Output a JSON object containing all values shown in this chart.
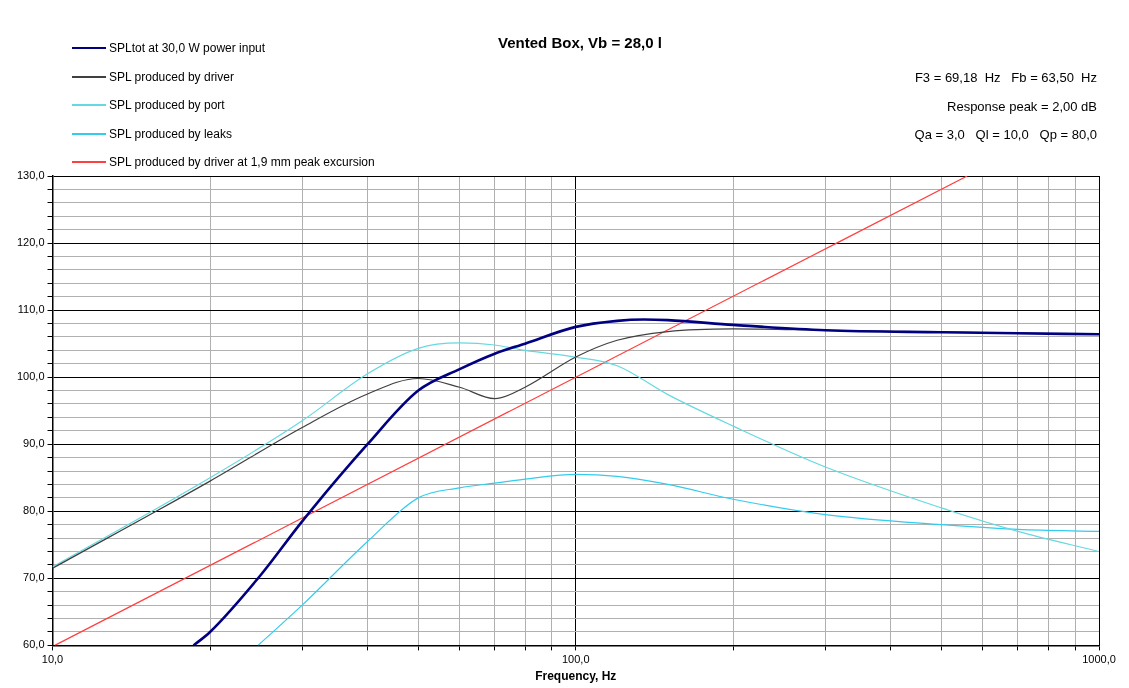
{
  "chart_data": {
    "type": "line",
    "title": "Vented Box, Vb = 28,0 l",
    "xlabel": "Frequency, Hz",
    "log": "x",
    "legend": "top left",
    "grid": true,
    "marker": "none",
    "line_style": "solid",
    "annotations": [
      "F3 = 69,18  Hz   Fb = 63,50  Hz",
      "Response peak = 2,00 dB",
      "Qa = 3,0   Ql = 10,0   Qp = 80,0"
    ],
    "xlim": [
      10,
      1000
    ],
    "xticks": [
      {
        "value": 10,
        "label": "10,0"
      },
      {
        "value": 20,
        "label": null
      },
      {
        "value": 30,
        "label": null
      },
      {
        "value": 40,
        "label": null
      },
      {
        "value": 50,
        "label": null
      },
      {
        "value": 60,
        "label": null
      },
      {
        "value": 70,
        "label": null
      },
      {
        "value": 80,
        "label": null
      },
      {
        "value": 90,
        "label": null
      },
      {
        "value": 100,
        "label": "100,0"
      },
      {
        "value": 200,
        "label": null
      },
      {
        "value": 300,
        "label": null
      },
      {
        "value": 400,
        "label": null
      },
      {
        "value": 500,
        "label": null
      },
      {
        "value": 600,
        "label": null
      },
      {
        "value": 700,
        "label": null
      },
      {
        "value": 800,
        "label": null
      },
      {
        "value": 900,
        "label": null
      },
      {
        "value": 1000,
        "label": "1000,0"
      }
    ],
    "ylim": [
      60,
      130
    ],
    "yticks": [
      {
        "value": 60,
        "label": "60,0"
      },
      {
        "value": 62,
        "label": null
      },
      {
        "value": 64,
        "label": null
      },
      {
        "value": 66,
        "label": null
      },
      {
        "value": 68,
        "label": null
      },
      {
        "value": 70,
        "label": "70,0"
      },
      {
        "value": 72,
        "label": null
      },
      {
        "value": 74,
        "label": null
      },
      {
        "value": 76,
        "label": null
      },
      {
        "value": 78,
        "label": null
      },
      {
        "value": 80,
        "label": "80,0"
      },
      {
        "value": 82,
        "label": null
      },
      {
        "value": 84,
        "label": null
      },
      {
        "value": 86,
        "label": null
      },
      {
        "value": 88,
        "label": null
      },
      {
        "value": 90,
        "label": "90,0"
      },
      {
        "value": 92,
        "label": null
      },
      {
        "value": 94,
        "label": null
      },
      {
        "value": 96,
        "label": null
      },
      {
        "value": 98,
        "label": null
      },
      {
        "value": 100,
        "label": "100,0"
      },
      {
        "value": 102,
        "label": null
      },
      {
        "value": 104,
        "label": null
      },
      {
        "value": 106,
        "label": null
      },
      {
        "value": 108,
        "label": null
      },
      {
        "value": 110,
        "label": "110,0"
      },
      {
        "value": 112,
        "label": null
      },
      {
        "value": 114,
        "label": null
      },
      {
        "value": 116,
        "label": null
      },
      {
        "value": 118,
        "label": null
      },
      {
        "value": 120,
        "label": "120,0"
      },
      {
        "value": 122,
        "label": null
      },
      {
        "value": 124,
        "label": null
      },
      {
        "value": 126,
        "label": null
      },
      {
        "value": 128,
        "label": null
      },
      {
        "value": 130,
        "label": "130,0"
      }
    ],
    "series": [
      {
        "name": "SPLtot at 30,0 W power input",
        "color": "#000080",
        "x": [
          18.6,
          20,
          25,
          30,
          40,
          50,
          60,
          70,
          80,
          100,
          120,
          135,
          150,
          200,
          300,
          500,
          1000
        ],
        "values": [
          60,
          62,
          70.5,
          78.5,
          90,
          98,
          101.2,
          103.5,
          105,
          107.5,
          108.4,
          108.6,
          108.5,
          107.8,
          107,
          106.7,
          106.4
        ]
      },
      {
        "name": "SPL produced by driver",
        "color": "#404040",
        "x": [
          10,
          20,
          30,
          40,
          50,
          60,
          70,
          80,
          100,
          120,
          150,
          200,
          300,
          1000
        ],
        "values": [
          71.5,
          84.5,
          92.5,
          97.5,
          99.8,
          98.5,
          96.8,
          98.5,
          103,
          105.5,
          106.8,
          107.2,
          107,
          106.4
        ]
      },
      {
        "name": "SPL produced by port",
        "color": "#66d9e0",
        "x": [
          10,
          20,
          30,
          40,
          50,
          60,
          70,
          80,
          100,
          120,
          150,
          200,
          300,
          500,
          700,
          1000
        ],
        "values": [
          71.7,
          85,
          93.5,
          100.5,
          104.3,
          105.1,
          104.8,
          104,
          103,
          101.7,
          97.4,
          92.7,
          86.6,
          80.5,
          77,
          74
        ]
      },
      {
        "name": "SPL produced by leaks",
        "color": "#33ccee",
        "x": [
          24.7,
          30,
          40,
          50,
          60,
          70,
          80,
          100,
          120,
          150,
          200,
          300,
          500,
          700,
          1000
        ],
        "values": [
          60,
          66,
          75.5,
          82,
          83.5,
          84.2,
          84.8,
          85.5,
          85.2,
          84,
          81.8,
          79.5,
          78,
          77.3,
          77
        ]
      },
      {
        "name": "SPL produced by driver at 1,9 mm peak excursion",
        "color": "#ff4040",
        "x": [
          10.1,
          100,
          560
        ],
        "values": [
          60,
          100,
          130
        ]
      }
    ]
  }
}
